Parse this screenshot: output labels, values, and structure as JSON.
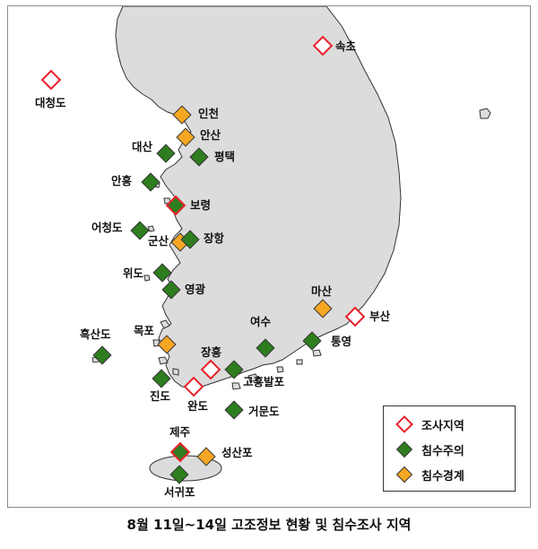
{
  "caption": "8월 11일~14일 고조정보 현황 및 침수조사 지역",
  "legend": {
    "items": [
      {
        "type": "survey",
        "label": "조사지역"
      },
      {
        "type": "caution",
        "label": "침수주의"
      },
      {
        "type": "warning",
        "label": "침수경계"
      }
    ]
  },
  "colors": {
    "survey_outline": "#e8212b",
    "caution_fill": "#2e7d1f",
    "warning_fill": "#f5a623",
    "land": "#dcdcdc",
    "coast": "#333333"
  },
  "stations": [
    {
      "id": "sokcho",
      "name": "속초",
      "type": "survey"
    },
    {
      "id": "daecheongdo",
      "name": "대청도",
      "type": "survey"
    },
    {
      "id": "incheon",
      "name": "인천",
      "type": "warning"
    },
    {
      "id": "ansan",
      "name": "안산",
      "type": "warning"
    },
    {
      "id": "daesan",
      "name": "대산",
      "type": "caution"
    },
    {
      "id": "pyeongtaek",
      "name": "평택",
      "type": "caution"
    },
    {
      "id": "anheung",
      "name": "안흥",
      "type": "caution"
    },
    {
      "id": "boryeong",
      "name": "보령",
      "type": "caution",
      "surveyed": true
    },
    {
      "id": "eocheongdo",
      "name": "어청도",
      "type": "caution"
    },
    {
      "id": "gunsan",
      "name": "군산",
      "type": "warning"
    },
    {
      "id": "janghang",
      "name": "장항",
      "type": "caution"
    },
    {
      "id": "wido",
      "name": "위도",
      "type": "caution"
    },
    {
      "id": "yeonggwang",
      "name": "영광",
      "type": "caution"
    },
    {
      "id": "masan",
      "name": "마산",
      "type": "warning"
    },
    {
      "id": "busan",
      "name": "부산",
      "type": "survey"
    },
    {
      "id": "yeosu",
      "name": "여수",
      "type": "caution"
    },
    {
      "id": "tongyeong",
      "name": "통영",
      "type": "caution"
    },
    {
      "id": "heuksando",
      "name": "흑산도",
      "type": "caution"
    },
    {
      "id": "mokpo",
      "name": "목포",
      "type": "warning"
    },
    {
      "id": "jangheung",
      "name": "장흥",
      "type": "survey"
    },
    {
      "id": "goheungbalpo",
      "name": "고흥발포",
      "type": "caution"
    },
    {
      "id": "jindo",
      "name": "진도",
      "type": "caution"
    },
    {
      "id": "wando",
      "name": "완도",
      "type": "survey"
    },
    {
      "id": "geomundo",
      "name": "거문도",
      "type": "caution"
    },
    {
      "id": "jeju",
      "name": "제주",
      "type": "caution",
      "surveyed": true
    },
    {
      "id": "seongsanpo",
      "name": "성산포",
      "type": "warning"
    },
    {
      "id": "seogwipo",
      "name": "서귀포",
      "type": "caution"
    }
  ]
}
